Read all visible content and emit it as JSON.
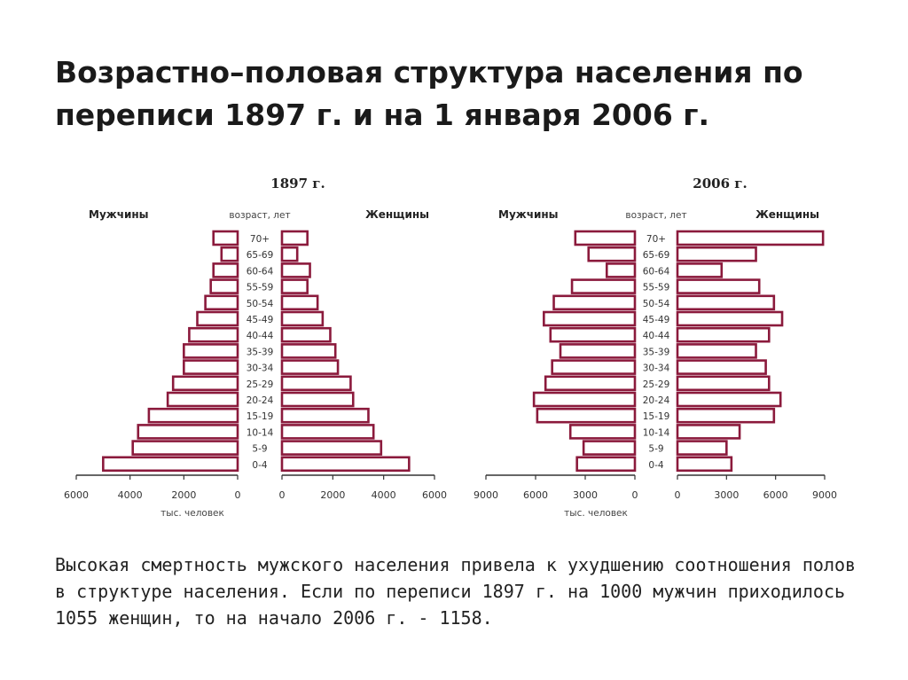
{
  "title": "Возрастно–половая структура населения по переписи 1897 г. и на 1 января 2006 г.",
  "caption": "Высокая смертность мужского населения привела к ухудшению соотношения полов в структуре населения. Если по переписи 1897 г. на 1000 мужчин приходилось 1055 женщин, то на начало 2006 г. - 1158.",
  "colors": {
    "bar_outline": "#8b1a3c",
    "bar_fill": "#ffffff",
    "axis": "#333333"
  },
  "chart_data": [
    {
      "type": "bar",
      "orientation": "horizontal-pyramid",
      "title": "1897 г.",
      "left_label": "Мужчины",
      "right_label": "Женщины",
      "center_label": "возраст, лет",
      "xlabel": "тыс. человек",
      "xlim": [
        0,
        6000
      ],
      "ticks_left": [
        "6000",
        "4000",
        "2000",
        "0"
      ],
      "ticks_right": [
        "0",
        "2000",
        "4000",
        "6000"
      ],
      "categories": [
        "0-4",
        "5-9",
        "10-14",
        "15-19",
        "20-24",
        "25-29",
        "30-34",
        "35-39",
        "40-44",
        "45-49",
        "50-54",
        "55-59",
        "60-64",
        "65-69",
        "70+"
      ],
      "series": [
        {
          "name": "Мужчины",
          "values": [
            5000,
            3900,
            3700,
            3300,
            2600,
            2400,
            2000,
            2000,
            1800,
            1500,
            1200,
            1000,
            900,
            600,
            900
          ]
        },
        {
          "name": "Женщины",
          "values": [
            5000,
            3900,
            3600,
            3400,
            2800,
            2700,
            2200,
            2100,
            1900,
            1600,
            1400,
            1000,
            1100,
            600,
            1000
          ]
        }
      ]
    },
    {
      "type": "bar",
      "orientation": "horizontal-pyramid",
      "title": "2006 г.",
      "left_label": "Мужчины",
      "right_label": "Женщины",
      "center_label": "возраст, лет",
      "xlabel": "тыс. человек",
      "xlim": [
        0,
        9000
      ],
      "ticks_left": [
        "9000",
        "6000",
        "3000",
        "0"
      ],
      "ticks_right": [
        "0",
        "3000",
        "6000",
        "9000"
      ],
      "categories": [
        "0-4",
        "5-9",
        "10-14",
        "15-19",
        "20-24",
        "25-29",
        "30-34",
        "35-39",
        "40-44",
        "45-49",
        "50-54",
        "55-59",
        "60-64",
        "65-69",
        "70+"
      ],
      "series": [
        {
          "name": "Мужчины",
          "values": [
            3500,
            3100,
            3900,
            5900,
            6100,
            5400,
            5000,
            4500,
            5100,
            5500,
            4900,
            3800,
            1700,
            2800,
            3600
          ]
        },
        {
          "name": "Женщины",
          "values": [
            3300,
            3000,
            3800,
            5900,
            6300,
            5600,
            5400,
            4800,
            5600,
            6400,
            5900,
            5000,
            2700,
            4800,
            8900
          ]
        }
      ]
    }
  ]
}
